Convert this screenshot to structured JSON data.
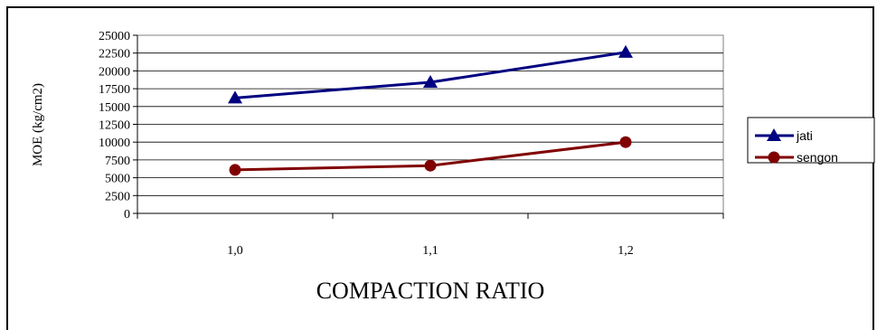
{
  "chart_data": {
    "type": "line",
    "categories": [
      "1,0",
      "1,1",
      "1,2"
    ],
    "series": [
      {
        "name": "jati",
        "values": [
          16200,
          18400,
          22600
        ],
        "color": "#000080",
        "marker": "triangle"
      },
      {
        "name": "sengon",
        "values": [
          6100,
          6700,
          10000
        ],
        "color": "#800000",
        "marker": "circle"
      }
    ],
    "xlabel": "COMPACTION RATIO",
    "ylabel": "MOE (kg/cm2)",
    "ylim": [
      0,
      25000
    ],
    "yticks": [
      "0",
      "2500",
      "5000",
      "7500",
      "10000",
      "12500",
      "15000",
      "17500",
      "20000",
      "22500",
      "25000"
    ],
    "grid": true,
    "legend_position": "right"
  }
}
